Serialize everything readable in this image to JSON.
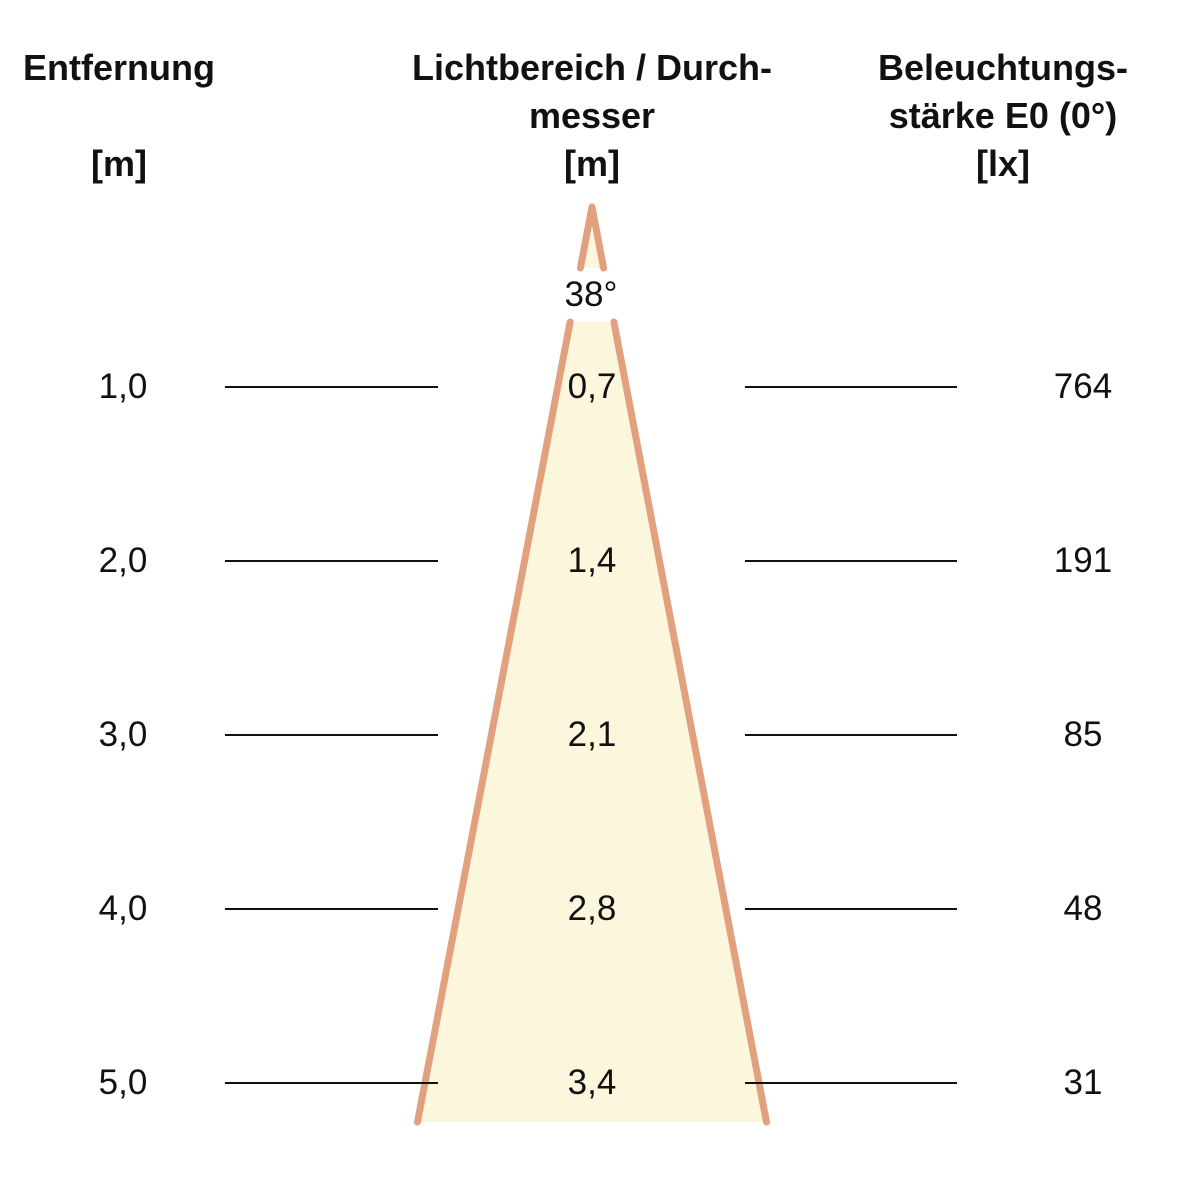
{
  "columns": {
    "distance": {
      "title": "Entfernung",
      "title_line2": "",
      "unit": "[m]"
    },
    "beam": {
      "title": "Lichtbereich / Durch-",
      "title_line2": "messer",
      "unit": "[m]"
    },
    "illuminance": {
      "title": "Beleuchtungs-",
      "title_line2": "stärke E0 (0°)",
      "unit": "[lx]"
    }
  },
  "beam_angle": "38°",
  "rows": [
    {
      "distance": "1,0",
      "diameter": "0,7",
      "illuminance": "764"
    },
    {
      "distance": "2,0",
      "diameter": "1,4",
      "illuminance": "191"
    },
    {
      "distance": "3,0",
      "diameter": "2,1",
      "illuminance": "85"
    },
    {
      "distance": "4,0",
      "diameter": "2,8",
      "illuminance": "48"
    },
    {
      "distance": "5,0",
      "diameter": "3,4",
      "illuminance": "31"
    }
  ],
  "colors": {
    "cone_fill": "#FBF6DC",
    "cone_stroke": "#E2A17E",
    "text": "#111111",
    "line": "#111111",
    "background": "#ffffff"
  },
  "chart_data": {
    "type": "table",
    "columns": [
      "Entfernung [m]",
      "Lichtbereich / Durchmesser [m]",
      "Beleuchtungsstärke E0 (0°) [lx]"
    ],
    "rows": [
      [
        1.0,
        0.7,
        764
      ],
      [
        2.0,
        1.4,
        191
      ],
      [
        3.0,
        2.1,
        85
      ],
      [
        4.0,
        2.8,
        48
      ],
      [
        5.0,
        3.4,
        31
      ]
    ],
    "beam_angle_deg": 38
  }
}
